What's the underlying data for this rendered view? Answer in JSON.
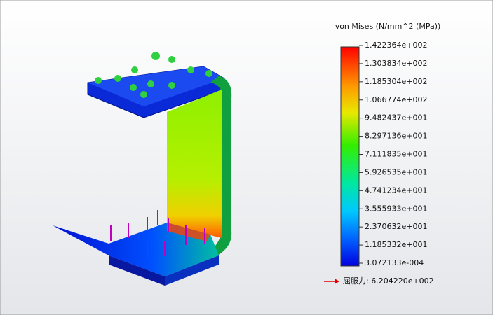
{
  "legend": {
    "title": "von Mises (N/mm^2 (MPa))",
    "ticks": [
      "1.422364e+002",
      "1.303834e+002",
      "1.185304e+002",
      "1.066774e+002",
      "9.482437e+001",
      "8.297136e+001",
      "7.111835e+001",
      "5.926535e+001",
      "4.741234e+001",
      "3.555933e+001",
      "2.370632e+001",
      "1.185332e+001",
      "3.072133e-004"
    ]
  },
  "yield": {
    "label": "屈服力: 6.204220e+002"
  }
}
